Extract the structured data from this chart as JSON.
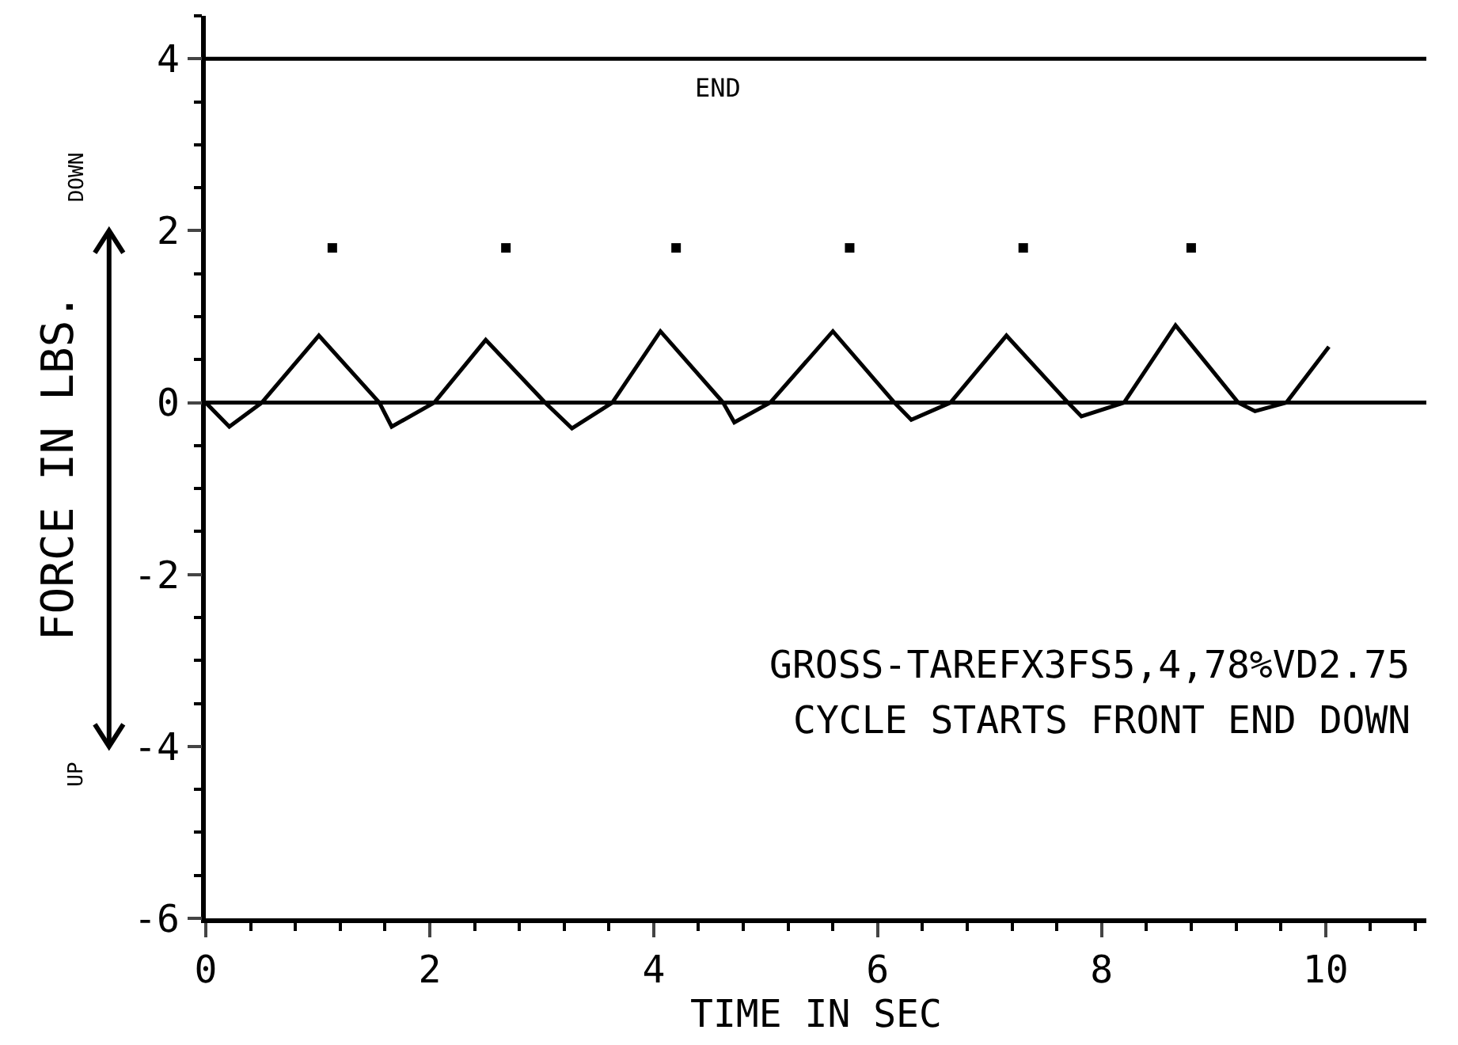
{
  "chart_data": {
    "type": "line",
    "xlabel": "TIME IN SEC",
    "ylabel": "FORCE IN LBS.",
    "xlim": [
      0,
      10.9
    ],
    "xticks": [
      0,
      2,
      4,
      6,
      8,
      10
    ],
    "ylim": [
      -6,
      4.5
    ],
    "yticks": [
      -6,
      -4,
      -2,
      0,
      2,
      4
    ],
    "grid": false,
    "series": [
      {
        "color": "#000000",
        "marker": "none",
        "x": [
          0,
          0.21,
          0.5,
          1.01,
          1.55,
          1.66,
          2.04,
          2.5,
          3.03,
          3.27,
          3.63,
          4.06,
          4.62,
          4.72,
          5.04,
          5.6,
          6.15,
          6.3,
          6.65,
          7.15,
          7.7,
          7.82,
          8.2,
          8.66,
          9.22,
          9.37,
          9.65,
          10.03
        ],
        "values": [
          0,
          -0.28,
          0,
          0.78,
          0,
          -0.28,
          0,
          0.73,
          0,
          -0.3,
          0,
          0.83,
          0,
          -0.23,
          0,
          0.83,
          0,
          -0.2,
          0,
          0.78,
          0,
          -0.16,
          0,
          0.9,
          0,
          -0.1,
          0,
          0.65
        ]
      },
      {
        "type": "scatter",
        "color": "#000000",
        "marker": "square",
        "x": [
          1.13,
          2.68,
          4.2,
          5.75,
          7.3,
          8.8
        ],
        "values": [
          1.8,
          1.8,
          1.8,
          1.8,
          1.8,
          1.8
        ]
      }
    ],
    "ref_lines": [
      {
        "axis": "y",
        "value": 4,
        "label": null
      },
      {
        "axis": "y",
        "value": 0,
        "label": null
      }
    ],
    "annotations": [
      "END",
      "GROSS-TAREFX3FS5,4,78%VD2.75",
      "CYCLE STARTS FRONT END DOWN",
      "DOWN",
      "UP"
    ]
  }
}
